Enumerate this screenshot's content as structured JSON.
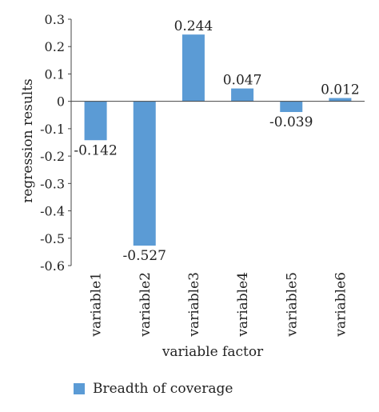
{
  "chart_data": {
    "type": "bar",
    "categories": [
      "variable1",
      "variable2",
      "variable3",
      "variable4",
      "variable5",
      "variable6"
    ],
    "series": [
      {
        "name": "Breadth of coverage",
        "values": [
          -0.142,
          -0.527,
          0.244,
          0.047,
          -0.039,
          0.012
        ]
      }
    ],
    "data_labels": [
      "-0.142",
      "-0.527",
      "0.244",
      "0.047",
      "-0.039",
      "0.012"
    ],
    "xlabel": "variable factor",
    "ylabel": "regression results",
    "ylim": [
      -0.6,
      0.3
    ],
    "yticks": [
      "0.3",
      "0.2",
      "0.1",
      "0",
      "-0.1",
      "-0.2",
      "-0.3",
      "-0.4",
      "-0.5",
      "-0.6"
    ],
    "grid": false,
    "legend_position": "bottom-left",
    "colors": {
      "bar": "#5b9bd5",
      "axis": "#444444"
    }
  }
}
